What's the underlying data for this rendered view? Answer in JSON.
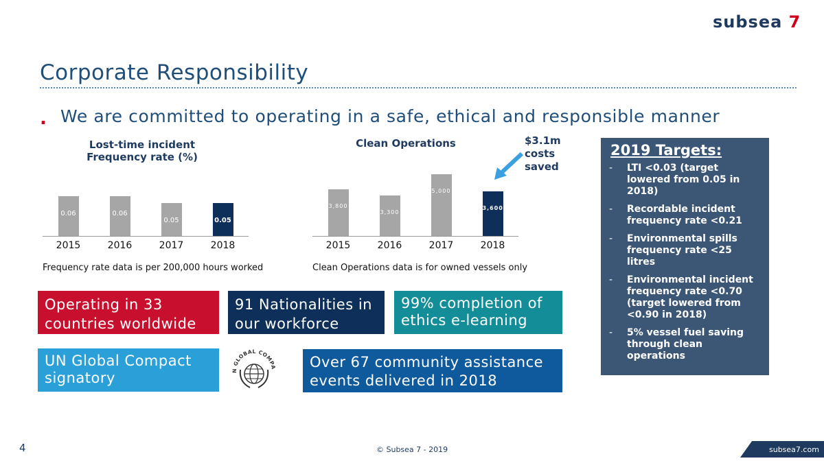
{
  "brand": {
    "logo_main": "subsea",
    "logo_num": "7"
  },
  "title": "Corporate Responsibility",
  "bullet": {
    "marker": ".",
    "text": "We are committed to operating in a safe, ethical and responsible manner"
  },
  "chart_data": [
    {
      "type": "bar",
      "title_line1": "Lost-time incident",
      "title_line2": "Frequency rate (%)",
      "categories": [
        "2015",
        "2016",
        "2017",
        "2018"
      ],
      "values": [
        0.06,
        0.06,
        0.05,
        0.05
      ],
      "data_labels": [
        "0.06",
        "0.06",
        "0.05",
        "0.05"
      ],
      "highlight_index": 3,
      "ylim": [
        0,
        0.06
      ],
      "note": "Frequency rate data is per 200,000 hours worked"
    },
    {
      "type": "bar",
      "title": "Clean Operations",
      "categories": [
        "2015",
        "2016",
        "2017",
        "2018"
      ],
      "values": [
        3800,
        3300,
        5000,
        3600
      ],
      "data_labels": [
        "3,800",
        "3,300",
        "5,000",
        "3,600"
      ],
      "highlight_index": 3,
      "ylim": [
        0,
        5000
      ],
      "note": "Clean Operations data is for owned vessels only",
      "callout": {
        "line1": "$3.1m",
        "line2": "costs",
        "line3": "saved"
      }
    }
  ],
  "colors": {
    "grey_bar": "#a6a6a6",
    "navy_bar": "#0d2f5a",
    "red": "#c8102e",
    "navy": "#0d2f5a",
    "teal": "#138e98",
    "light_blue": "#2a9fd8",
    "mid_blue": "#0f5a9c"
  },
  "facts": {
    "countries": "Operating in 33 countries worldwide",
    "nationalities": "91 Nationalities in our workforce",
    "ethics": "99% completion of ethics e-learning",
    "un_compact": "UN Global Compact signatory",
    "community": "Over 67 community assistance events delivered in 2018",
    "un_logo_text": "UN GLOBAL COMPACT"
  },
  "targets": {
    "heading": "2019 Targets:",
    "items": [
      "LTI <0.03 (target lowered from 0.05 in 2018)",
      "Recordable incident frequency rate <0.21",
      "Environmental spills frequency rate <25 litres",
      "Environmental incident frequency rate <0.70 (target lowered from <0.90 in 2018)",
      "5% vessel fuel saving through clean operations"
    ]
  },
  "footer": {
    "page_number": "4",
    "copyright": "© Subsea 7 - 2019",
    "url": "subsea7.com"
  }
}
